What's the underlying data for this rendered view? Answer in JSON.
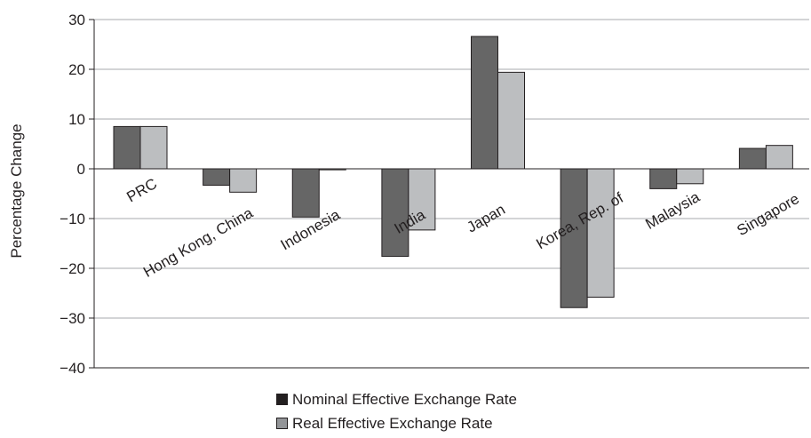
{
  "chart_data": {
    "type": "bar",
    "ylabel": "Percentage Change",
    "ylim": [
      -40,
      30
    ],
    "yticks": [
      30,
      20,
      10,
      0,
      -10,
      -20,
      -30,
      -40
    ],
    "ytick_labels": [
      "30",
      "20",
      "10",
      "0",
      "−10",
      "−20",
      "−30",
      "−40"
    ],
    "grid": true,
    "legend_position": "bottom",
    "categories": [
      "PRC",
      "Hong Kong, China",
      "Indonesia",
      "India",
      "Japan",
      "Korea, Rep. of",
      "Malaysia",
      "Singapore"
    ],
    "series": [
      {
        "name": "Nominal Effective Exchange Rate",
        "color": "#666666",
        "values": [
          8.5,
          -3.3,
          -9.7,
          -17.6,
          26.6,
          -27.9,
          -4.0,
          4.1
        ]
      },
      {
        "name": "Real Effective Exchange Rate",
        "color": "#bcbec0",
        "values": [
          8.5,
          -4.7,
          -0.2,
          -12.3,
          19.4,
          -25.8,
          -3.0,
          4.7
        ]
      }
    ]
  }
}
